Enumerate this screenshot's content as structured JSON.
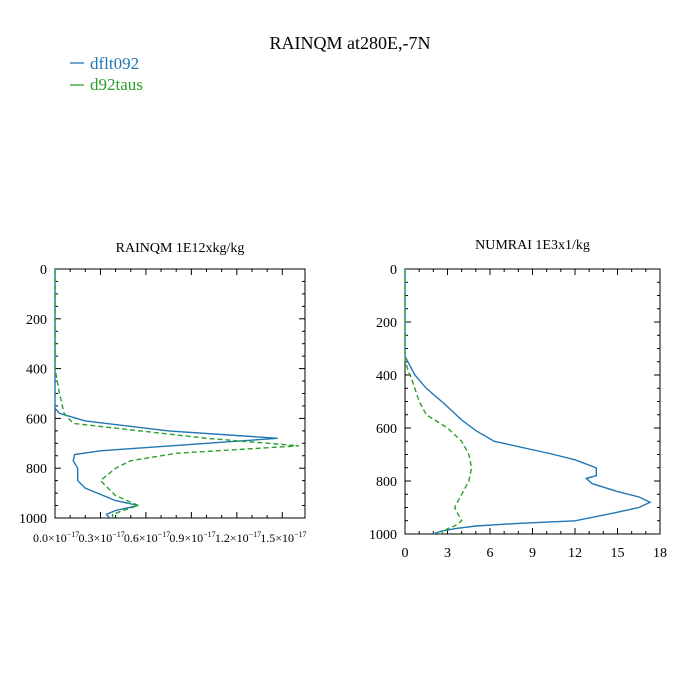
{
  "figure": {
    "title": "RAINQM at280E,-7N"
  },
  "legend": [
    {
      "label": "dflt092",
      "color": "#1f77b4",
      "dash": "solid"
    },
    {
      "label": "d92taus",
      "color": "#2ca02c",
      "dash": "dashed"
    }
  ],
  "chart_data": [
    {
      "type": "line",
      "title": "RAINQM  1E12xkg/kg",
      "xlabel": "",
      "ylabel": "",
      "xlim": [
        0,
        1.65e-17
      ],
      "ylim": [
        1000,
        0
      ],
      "y_inverted": true,
      "grid": false,
      "legend_position": "top-left",
      "xticks": [
        0,
        3e-18,
        6e-18,
        9e-18,
        1.2e-17,
        1.5e-17
      ],
      "xtick_labels": [
        {
          "mant": "0.0×10",
          "exp": "−17"
        },
        {
          "mant": "0.3×10",
          "exp": "−17"
        },
        {
          "mant": "0.6×10",
          "exp": "−17"
        },
        {
          "mant": "0.9×10",
          "exp": "−17"
        },
        {
          "mant": "1.2×10",
          "exp": "−17"
        },
        {
          "mant": "1.5×10",
          "exp": "−17"
        }
      ],
      "yticks": [
        0,
        200,
        400,
        600,
        800,
        1000
      ],
      "ytick_labels": [
        "0",
        "200",
        "400",
        "600",
        "800",
        "1000"
      ],
      "series": [
        {
          "name": "dflt092",
          "color": "#1f77b4",
          "dash": "solid",
          "points": [
            [
              0,
              0
            ],
            [
              0,
              200
            ],
            [
              0,
              400
            ],
            [
              0,
              500
            ],
            [
              0,
              560
            ],
            [
              3e-19,
              580
            ],
            [
              2e-18,
              610
            ],
            [
              7.5e-18,
              650
            ],
            [
              1.47e-17,
              680
            ],
            [
              1e-17,
              700
            ],
            [
              3e-18,
              730
            ],
            [
              1.3e-18,
              745
            ],
            [
              1.2e-18,
              770
            ],
            [
              1.5e-18,
              800
            ],
            [
              1.5e-18,
              850
            ],
            [
              2e-18,
              880
            ],
            [
              4e-18,
              930
            ],
            [
              5.5e-18,
              950
            ],
            [
              4e-18,
              970
            ],
            [
              3.4e-18,
              985
            ],
            [
              3.6e-18,
              1000
            ]
          ]
        },
        {
          "name": "d92taus",
          "color": "#2ca02c",
          "dash": "dashed",
          "points": [
            [
              0,
              0
            ],
            [
              0,
              200
            ],
            [
              0,
              400
            ],
            [
              3e-19,
              500
            ],
            [
              6e-19,
              580
            ],
            [
              1.2e-18,
              620
            ],
            [
              1e-17,
              680
            ],
            [
              1.61e-17,
              710
            ],
            [
              8e-18,
              740
            ],
            [
              5e-18,
              770
            ],
            [
              4e-18,
              800
            ],
            [
              3e-18,
              850
            ],
            [
              4e-18,
              910
            ],
            [
              5.5e-18,
              950
            ],
            [
              4.5e-18,
              970
            ],
            [
              3.8e-18,
              985
            ],
            [
              3.8e-18,
              1000
            ]
          ]
        }
      ]
    },
    {
      "type": "line",
      "title": "NUMRAI  1E3x1/kg",
      "xlabel": "",
      "ylabel": "",
      "xlim": [
        0,
        18
      ],
      "ylim": [
        1000,
        0
      ],
      "y_inverted": true,
      "grid": false,
      "xticks": [
        0,
        3,
        6,
        9,
        12,
        15,
        18
      ],
      "xtick_labels": [
        "0",
        "3",
        "6",
        "9",
        "12",
        "15",
        "18"
      ],
      "yticks": [
        0,
        200,
        400,
        600,
        800,
        1000
      ],
      "ytick_labels": [
        "0",
        "200",
        "400",
        "600",
        "800",
        "1000"
      ],
      "series": [
        {
          "name": "dflt092",
          "color": "#1f77b4",
          "dash": "solid",
          "points": [
            [
              0,
              0
            ],
            [
              0,
              200
            ],
            [
              0,
              300
            ],
            [
              0,
              330
            ],
            [
              0.3,
              360
            ],
            [
              0.7,
              400
            ],
            [
              1.5,
              450
            ],
            [
              2.8,
              510
            ],
            [
              4.0,
              570
            ],
            [
              5.0,
              610
            ],
            [
              6.3,
              650
            ],
            [
              10.5,
              700
            ],
            [
              12.0,
              720
            ],
            [
              13.5,
              750
            ],
            [
              13.5,
              780
            ],
            [
              12.8,
              790
            ],
            [
              13.2,
              810
            ],
            [
              15.0,
              840
            ],
            [
              16.5,
              860
            ],
            [
              17.3,
              880
            ],
            [
              16.5,
              900
            ],
            [
              14.8,
              920
            ],
            [
              12.0,
              950
            ],
            [
              8.0,
              960
            ],
            [
              5.0,
              970
            ],
            [
              3.5,
              980
            ],
            [
              2.5,
              990
            ],
            [
              2.0,
              1000
            ]
          ]
        },
        {
          "name": "d92taus",
          "color": "#2ca02c",
          "dash": "dashed",
          "points": [
            [
              0,
              0
            ],
            [
              0,
              200
            ],
            [
              0,
              340
            ],
            [
              0.2,
              380
            ],
            [
              0.5,
              420
            ],
            [
              1.0,
              500
            ],
            [
              1.5,
              550
            ],
            [
              3.0,
              600
            ],
            [
              4.0,
              650
            ],
            [
              4.5,
              700
            ],
            [
              4.7,
              750
            ],
            [
              4.5,
              800
            ],
            [
              4.0,
              850
            ],
            [
              3.5,
              900
            ],
            [
              3.8,
              930
            ],
            [
              4.0,
              950
            ],
            [
              3.5,
              970
            ],
            [
              3.0,
              980
            ],
            [
              2.8,
              990
            ],
            [
              2.5,
              1000
            ]
          ]
        }
      ]
    }
  ]
}
